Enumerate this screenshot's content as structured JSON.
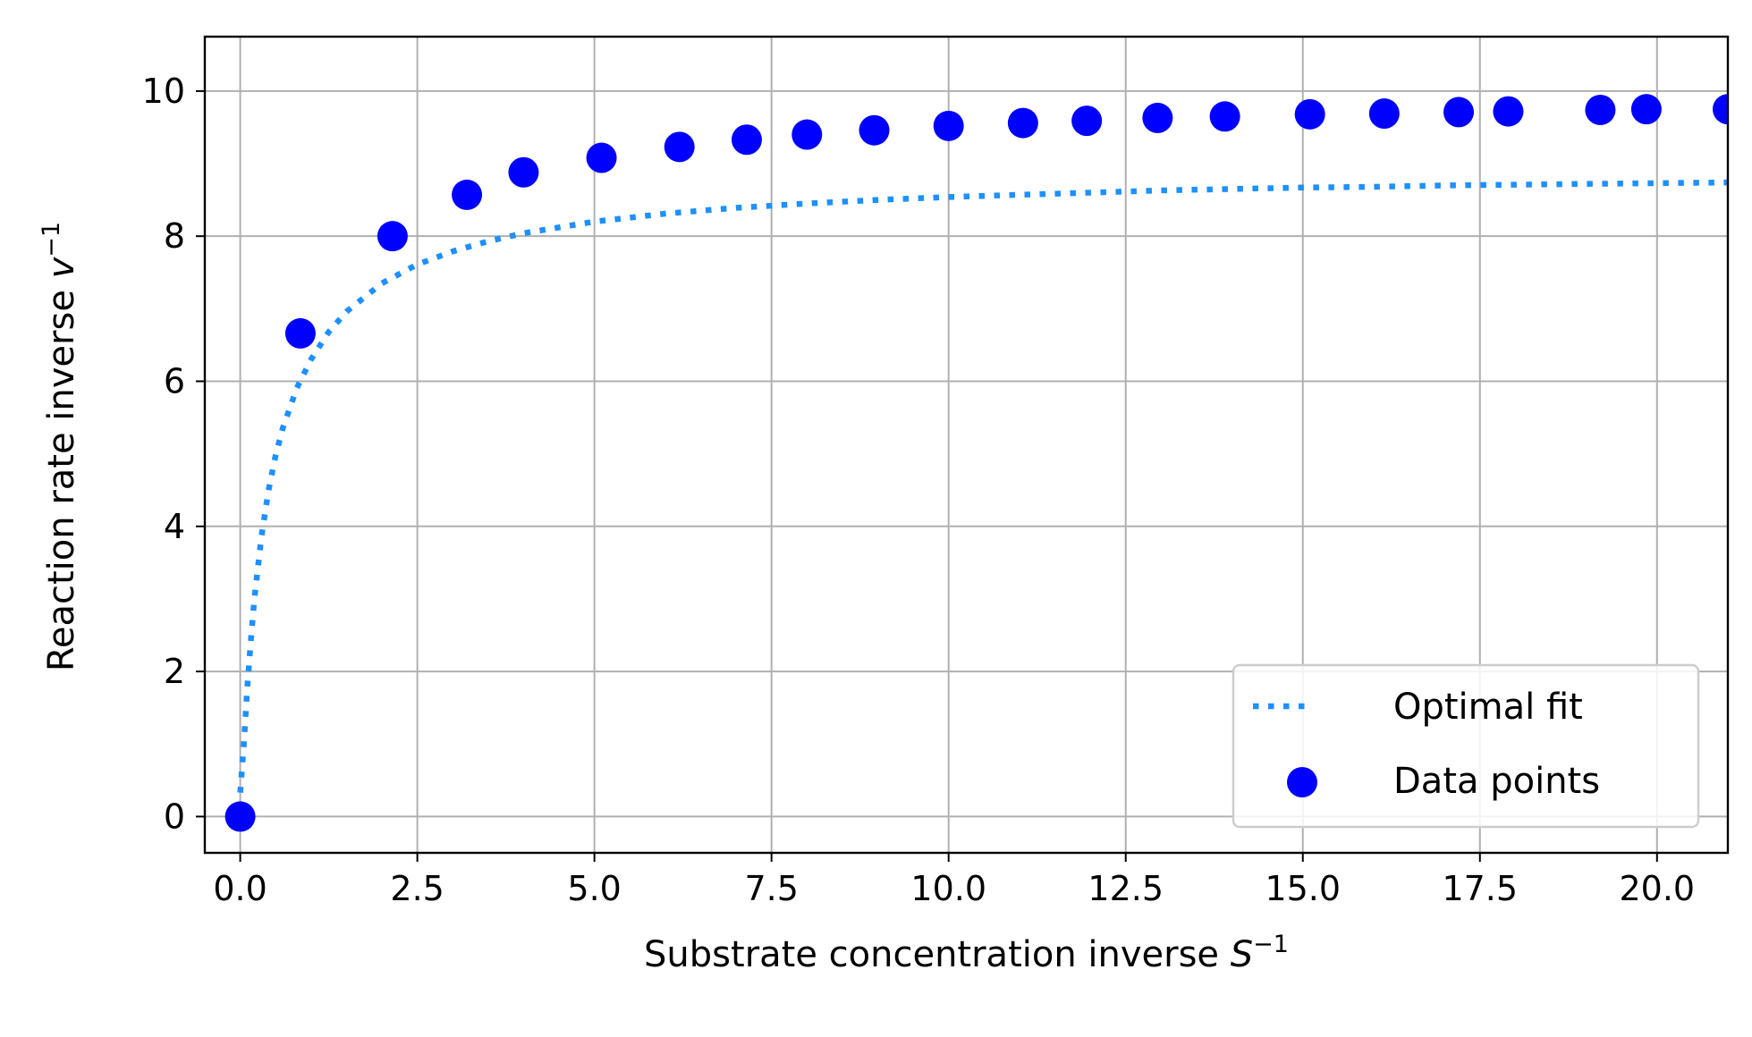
{
  "chart_data": {
    "type": "scatter",
    "title": "",
    "xlabel": {
      "base": "Substrate concentration inverse ",
      "var": "S",
      "sup": "−1"
    },
    "ylabel": {
      "base": "Reaction rate inverse ",
      "var": "v",
      "sup": "−1"
    },
    "xlim": [
      -0.5,
      21.0
    ],
    "ylim": [
      -0.5,
      10.75
    ],
    "xticks": [
      0.0,
      2.5,
      5.0,
      7.5,
      10.0,
      12.5,
      15.0,
      17.5,
      20.0
    ],
    "xtick_labels": [
      "0.0",
      "2.5",
      "5.0",
      "7.5",
      "10.0",
      "12.5",
      "15.0",
      "17.5",
      "20.0"
    ],
    "yticks": [
      0,
      2,
      4,
      6,
      8,
      10
    ],
    "ytick_labels": [
      "0",
      "2",
      "4",
      "6",
      "8",
      "10"
    ],
    "grid": true,
    "legend_position": "bottom-right",
    "series": [
      {
        "name": "Optimal fit",
        "kind": "line",
        "style": "dotted",
        "color": "#1e90ff",
        "x": [
          0.0,
          0.05,
          0.1,
          0.15,
          0.2,
          0.3,
          0.4,
          0.5,
          0.6,
          0.8,
          1.0,
          1.25,
          1.5,
          2.0,
          2.5,
          3.0,
          3.5,
          4.0,
          5.0,
          6.0,
          7.0,
          8.0,
          9.0,
          10.0,
          11.0,
          12.0,
          13.0,
          14.0,
          15.0,
          16.0,
          17.0,
          18.0,
          19.0,
          20.0,
          21.0
        ],
        "y": [
          0.33,
          0.99,
          1.78,
          2.43,
          3.0,
          3.87,
          4.5,
          4.98,
          5.35,
          5.91,
          6.3,
          6.68,
          6.96,
          7.35,
          7.61,
          7.79,
          7.93,
          8.04,
          8.2,
          8.31,
          8.39,
          8.45,
          8.5,
          8.54,
          8.57,
          8.6,
          8.63,
          8.65,
          8.67,
          8.68,
          8.7,
          8.71,
          8.72,
          8.73,
          8.74
        ]
      },
      {
        "name": "Data points",
        "kind": "scatter",
        "color": "#0000ff",
        "x": [
          0.0,
          0.85,
          2.15,
          3.2,
          4.0,
          5.1,
          6.2,
          7.15,
          8.0,
          8.95,
          10.0,
          11.05,
          11.95,
          12.95,
          13.9,
          15.1,
          16.15,
          17.2,
          17.9,
          19.2,
          19.85,
          21.0
        ],
        "y": [
          0.0,
          6.66,
          8.0,
          8.57,
          8.88,
          9.08,
          9.23,
          9.33,
          9.4,
          9.46,
          9.52,
          9.56,
          9.59,
          9.63,
          9.65,
          9.68,
          9.69,
          9.71,
          9.72,
          9.74,
          9.75,
          9.75
        ]
      }
    ]
  }
}
